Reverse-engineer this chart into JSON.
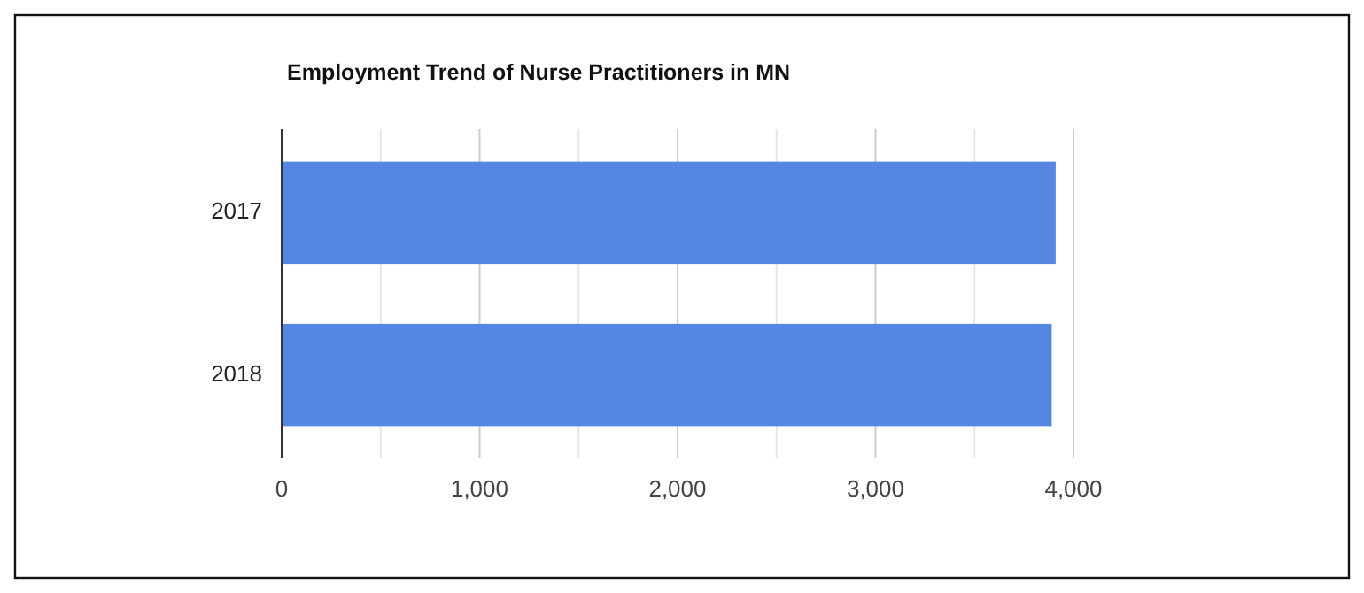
{
  "chart_data": {
    "type": "bar",
    "orientation": "horizontal",
    "title": "Employment Trend of Nurse Practitioners in MN",
    "categories": [
      "2017",
      "2018"
    ],
    "values": [
      3910,
      3890
    ],
    "color": "#5486e2",
    "xlim": [
      0,
      4000
    ],
    "xticks": [
      0,
      {
        "value": 500,
        "label": null
      },
      {
        "value": 1000,
        "label": "1,000"
      },
      {
        "value": 1500,
        "label": null
      },
      {
        "value": 2000,
        "label": "2,000"
      },
      {
        "value": 2500,
        "label": null
      },
      {
        "value": 3000,
        "label": "3,000"
      },
      {
        "value": 3500,
        "label": null
      },
      {
        "value": 4000,
        "label": "4,000"
      }
    ],
    "grid": "x"
  }
}
